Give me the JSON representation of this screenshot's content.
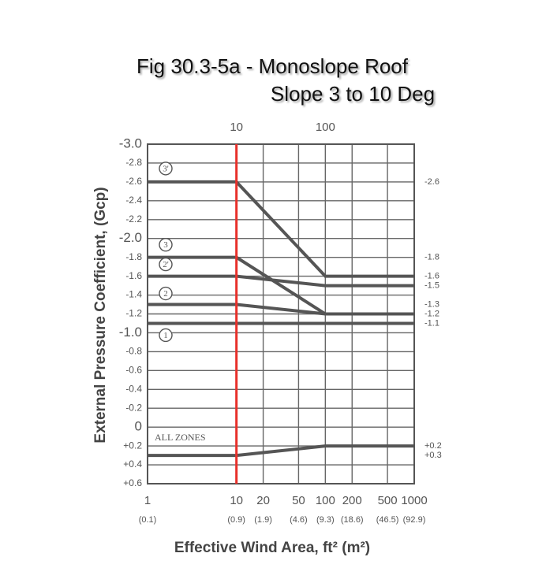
{
  "chart_data": {
    "type": "line",
    "title": "Fig 30.3-5a - Monoslope Roof",
    "subtitle": "Slope 3 to 10 Deg",
    "y_label": "External Pressure Coefficient, (Gcp)",
    "x_label": "Effective Wind Area, ft² (m²)",
    "x_scale": "log",
    "x": [
      1,
      10,
      100,
      1000
    ],
    "xlim": [
      1,
      1000
    ],
    "xticks": [
      1,
      10,
      20,
      50,
      100,
      200,
      500,
      1000
    ],
    "xtick_sublabels": [
      "(0.1)",
      "(0.9)",
      "(1.9)",
      "(4.6)",
      "(9.3)",
      "(18.6)",
      "(46.5)",
      "(92.9)"
    ],
    "x2ticks": [
      10,
      100
    ],
    "ylim": [
      -3.0,
      0.6
    ],
    "y_inverted": true,
    "yticks": [
      {
        "value": -3.0,
        "label": "-3.0"
      },
      -2.8,
      -2.6,
      -2.4,
      -2.2,
      {
        "value": -2.0,
        "label": "-2.0"
      },
      -1.8,
      -1.6,
      -1.4,
      -1.2,
      {
        "value": -1.0,
        "label": "-1.0"
      },
      -0.8,
      -0.6,
      -0.4,
      -0.2,
      0,
      {
        "value": 0.2,
        "label": "+0.2"
      },
      {
        "value": 0.4,
        "label": "+0.4"
      },
      {
        "value": 0.6,
        "label": "+0.6"
      }
    ],
    "grid": true,
    "marker_x": 10,
    "marker_color": "#e8302a",
    "series": [
      {
        "name": "3'",
        "color": "#555555",
        "values": [
          -2.6,
          -2.6,
          -1.6,
          -1.6
        ]
      },
      {
        "name": "3",
        "color": "#555555",
        "values": [
          -1.8,
          -1.8,
          -1.2,
          -1.2
        ]
      },
      {
        "name": "2'",
        "color": "#555555",
        "values": [
          -1.6,
          -1.6,
          -1.5,
          -1.5
        ]
      },
      {
        "name": "2",
        "color": "#555555",
        "values": [
          -1.3,
          -1.3,
          -1.2,
          -1.2
        ]
      },
      {
        "name": "1",
        "color": "#555555",
        "values": [
          -1.1,
          -1.1,
          -1.1,
          -1.1
        ]
      },
      {
        "name": "ALL ZONES",
        "color": "#555555",
        "values": [
          0.3,
          0.3,
          0.2,
          0.2
        ]
      }
    ],
    "right_labels": [
      {
        "value": -2.6,
        "label": "-2.6"
      },
      {
        "value": -1.8,
        "label": "-1.8"
      },
      {
        "value": -1.6,
        "label": "-1.6"
      },
      {
        "value": -1.5,
        "label": "-1.5"
      },
      {
        "value": -1.3,
        "label": "-1.3"
      },
      {
        "value": -1.2,
        "label": "-1.2"
      },
      {
        "value": -1.1,
        "label": "-1.1"
      },
      {
        "value": 0.2,
        "label": "+0.2"
      },
      {
        "value": 0.3,
        "label": "+0.3"
      }
    ]
  }
}
